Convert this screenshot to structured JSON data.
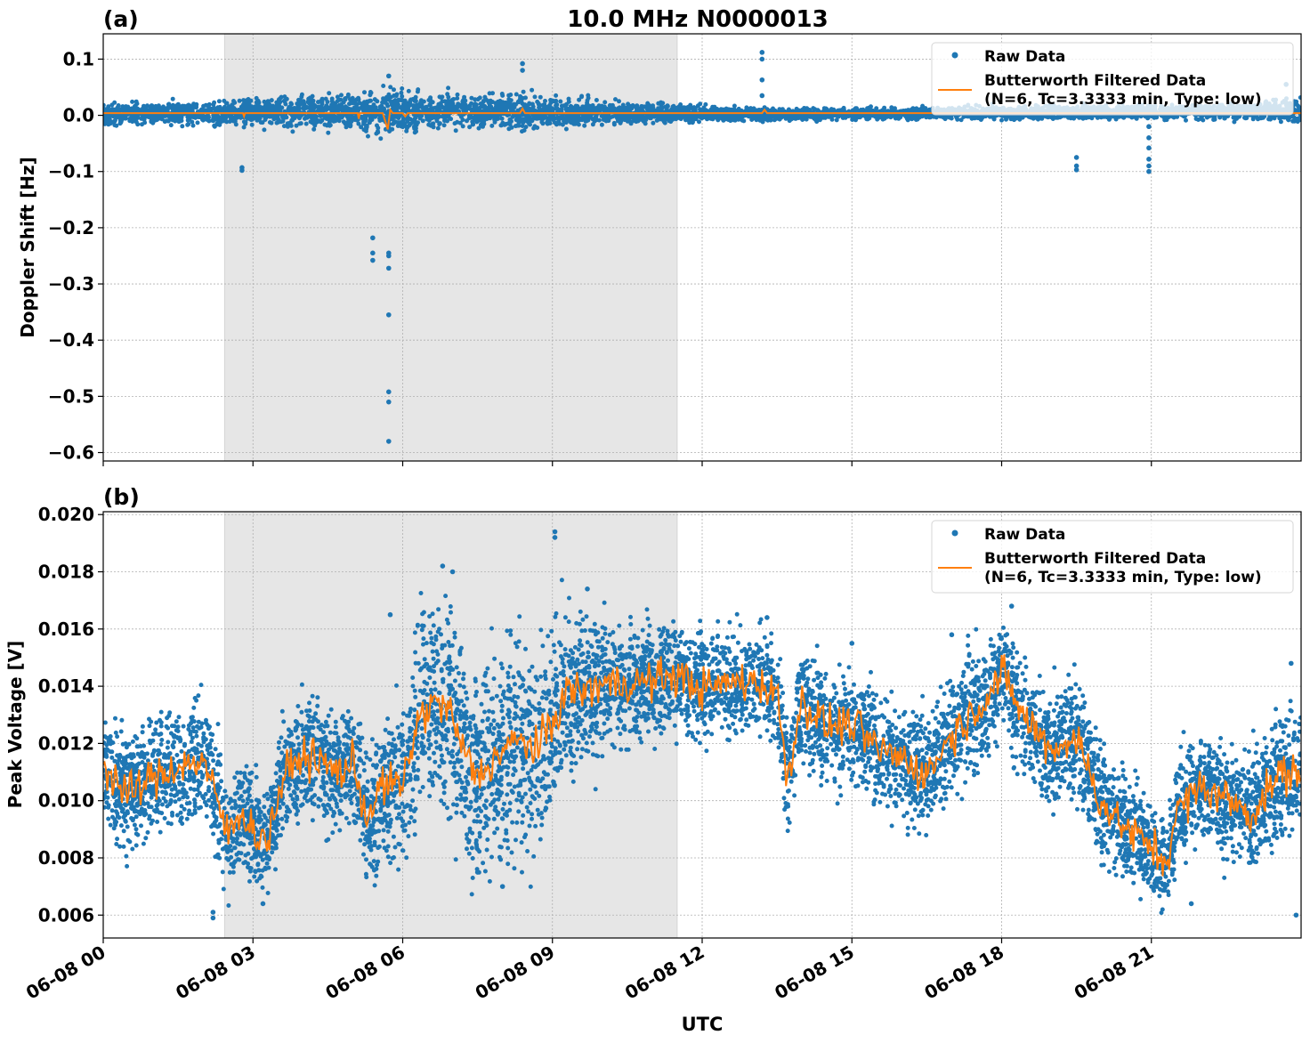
{
  "figure": {
    "title": "10.0 MHz N0000013",
    "xlabel": "UTC"
  },
  "x_ticks": [
    "06-08 00",
    "06-08 03",
    "06-08 06",
    "06-08 09",
    "06-08 12",
    "06-08 15",
    "06-08 18",
    "06-08 21"
  ],
  "colors": {
    "raw": "#1f77b4",
    "filtered": "#ff7f0e",
    "shade": "#e6e6e6",
    "grid": "#b0b0b0"
  },
  "legend": {
    "raw_label": "Raw Data",
    "filtered_label_line1": "Butterworth Filtered Data",
    "filtered_label_line2": "(N=6, Tc=3.3333 min, Type: low)"
  },
  "chart_data": [
    {
      "type": "scatter",
      "panel_label": "(a)",
      "ylabel": "Doppler Shift [Hz]",
      "x_unit": "hours UTC on 06-08",
      "xlim": [
        0,
        24
      ],
      "ylim": [
        -0.615,
        0.145
      ],
      "y_ticks": [
        "0.1",
        "0.0",
        "−0.1",
        "−0.2",
        "−0.3",
        "−0.4",
        "−0.5",
        "−0.6"
      ],
      "shaded_interval_x": [
        2.43,
        11.5
      ],
      "grid": true,
      "legend_position": "upper right",
      "series": [
        {
          "name": "Raw Data",
          "style": "points",
          "band_x": [
            0,
            1,
            2,
            3,
            4,
            5,
            5.5,
            6,
            7,
            8,
            9,
            10,
            11,
            12,
            14,
            16,
            18,
            20,
            22,
            23.5,
            24
          ],
          "band_low": [
            -0.015,
            -0.015,
            -0.015,
            -0.018,
            -0.02,
            -0.025,
            -0.03,
            -0.025,
            -0.02,
            -0.02,
            -0.02,
            -0.015,
            -0.012,
            -0.01,
            -0.008,
            -0.006,
            -0.006,
            -0.006,
            -0.006,
            -0.01,
            -0.02
          ],
          "band_high": [
            0.02,
            0.02,
            0.022,
            0.028,
            0.03,
            0.035,
            0.045,
            0.04,
            0.035,
            0.035,
            0.03,
            0.025,
            0.02,
            0.015,
            0.012,
            0.012,
            0.015,
            0.018,
            0.018,
            0.025,
            0.03
          ],
          "outliers": [
            [
              2.78,
              -0.093
            ],
            [
              2.78,
              -0.098
            ],
            [
              5.4,
              -0.218
            ],
            [
              5.4,
              -0.245
            ],
            [
              5.4,
              -0.258
            ],
            [
              5.72,
              -0.245
            ],
            [
              5.72,
              -0.25
            ],
            [
              5.72,
              -0.272
            ],
            [
              5.72,
              -0.355
            ],
            [
              5.72,
              -0.492
            ],
            [
              5.72,
              -0.51
            ],
            [
              5.72,
              -0.58
            ],
            [
              5.72,
              0.07
            ],
            [
              8.4,
              0.092
            ],
            [
              8.4,
              0.08
            ],
            [
              13.2,
              0.112
            ],
            [
              13.2,
              0.1
            ],
            [
              13.2,
              0.063
            ],
            [
              13.2,
              0.035
            ],
            [
              19.5,
              -0.075
            ],
            [
              19.5,
              -0.09
            ],
            [
              19.5,
              -0.097
            ],
            [
              20.95,
              -0.04
            ],
            [
              20.95,
              -0.058
            ],
            [
              20.95,
              -0.078
            ],
            [
              20.95,
              -0.09
            ],
            [
              20.95,
              -0.1
            ],
            [
              20.95,
              -0.02
            ],
            [
              23.7,
              0.055
            ]
          ]
        },
        {
          "name": "Butterworth Filtered Data",
          "style": "line",
          "x": [
            0,
            2.8,
            2.82,
            2.84,
            5.1,
            5.12,
            5.14,
            5.6,
            5.7,
            5.75,
            5.8,
            6.0,
            6.05,
            6.1,
            8.35,
            8.4,
            8.45,
            13.2,
            13.25,
            13.3,
            24
          ],
          "y": [
            0.004,
            0.004,
            -0.002,
            0.004,
            0.004,
            -0.006,
            0.004,
            0.004,
            -0.025,
            0.01,
            0.004,
            0.004,
            -0.002,
            0.004,
            0.004,
            0.012,
            0.004,
            0.004,
            0.01,
            0.004,
            0.004
          ]
        }
      ]
    },
    {
      "type": "scatter",
      "panel_label": "(b)",
      "ylabel": "Peak Voltage [V]",
      "x_unit": "hours UTC on 06-08",
      "xlim": [
        0,
        24
      ],
      "ylim": [
        0.0052,
        0.0201
      ],
      "y_ticks": [
        "0.020",
        "0.018",
        "0.016",
        "0.014",
        "0.012",
        "0.010",
        "0.008",
        "0.006"
      ],
      "shaded_interval_x": [
        2.43,
        11.5
      ],
      "grid": true,
      "legend_position": "upper right",
      "series": [
        {
          "name": "Butterworth Filtered Data",
          "style": "line",
          "x": [
            0,
            0.5,
            1,
            1.5,
            2,
            2.3,
            2.5,
            2.8,
            3.0,
            3.3,
            3.6,
            4.0,
            4.3,
            4.7,
            5.0,
            5.3,
            5.6,
            6.0,
            6.3,
            6.6,
            6.9,
            7.2,
            7.5,
            7.8,
            8.1,
            8.4,
            8.7,
            9.0,
            9.3,
            9.6,
            10.0,
            10.5,
            11.0,
            11.5,
            12.0,
            12.5,
            13.0,
            13.5,
            13.7,
            14.0,
            14.5,
            15.0,
            15.5,
            16.0,
            16.5,
            17.0,
            17.5,
            18.0,
            18.5,
            19.0,
            19.5,
            20.0,
            20.5,
            21.0,
            21.3,
            21.5,
            22.0,
            22.5,
            23.0,
            23.5,
            24.0
          ],
          "y": [
            0.0112,
            0.0102,
            0.0108,
            0.0112,
            0.0114,
            0.0099,
            0.0088,
            0.0097,
            0.0089,
            0.0086,
            0.0108,
            0.0116,
            0.0114,
            0.011,
            0.0113,
            0.0094,
            0.0106,
            0.0105,
            0.0128,
            0.0134,
            0.0133,
            0.0118,
            0.0108,
            0.0114,
            0.0119,
            0.0121,
            0.0118,
            0.0127,
            0.0139,
            0.0138,
            0.0141,
            0.0141,
            0.0142,
            0.0144,
            0.0139,
            0.0141,
            0.0142,
            0.0138,
            0.0108,
            0.0135,
            0.0126,
            0.0127,
            0.0118,
            0.0115,
            0.0109,
            0.0123,
            0.0132,
            0.0144,
            0.0128,
            0.0118,
            0.0122,
            0.0099,
            0.009,
            0.0084,
            0.0078,
            0.0096,
            0.0105,
            0.0101,
            0.0095,
            0.0108,
            0.0111
          ]
        },
        {
          "name": "Raw Data",
          "style": "points",
          "spread_x": [
            0,
            2,
            3,
            4,
            5,
            6,
            7,
            8,
            9,
            10,
            11,
            12,
            13,
            14,
            15,
            16,
            17,
            18,
            19,
            20,
            21,
            22,
            23,
            24
          ],
          "spread_halfwidth": [
            0.0012,
            0.0014,
            0.0012,
            0.0013,
            0.0013,
            0.0018,
            0.0024,
            0.0024,
            0.0022,
            0.0014,
            0.0012,
            0.0011,
            0.0012,
            0.0012,
            0.0012,
            0.0012,
            0.0013,
            0.0014,
            0.0013,
            0.0013,
            0.001,
            0.0012,
            0.0013,
            0.0015
          ],
          "outliers": [
            [
              2.2,
              0.0059
            ],
            [
              2.2,
              0.0061
            ],
            [
              3.2,
              0.0064
            ],
            [
              5.75,
              0.0165
            ],
            [
              6.8,
              0.0182
            ],
            [
              7.0,
              0.018
            ],
            [
              9.05,
              0.0194
            ],
            [
              9.05,
              0.0192
            ],
            [
              9.7,
              0.0174
            ],
            [
              7.5,
              0.0075
            ],
            [
              8.0,
              0.007
            ],
            [
              13.3,
              0.0164
            ],
            [
              15.0,
              0.0155
            ],
            [
              17.0,
              0.0158
            ],
            [
              18.2,
              0.0168
            ],
            [
              21.8,
              0.0064
            ],
            [
              23.9,
              0.006
            ],
            [
              23.8,
              0.0148
            ]
          ]
        }
      ]
    }
  ]
}
